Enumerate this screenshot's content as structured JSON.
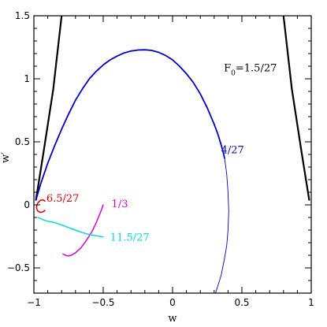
{
  "chart_data": {
    "type": "line",
    "title": "",
    "xlabel": "w",
    "ylabel": "w′",
    "xlim": [
      -1,
      1
    ],
    "ylim": [
      -0.7,
      1.5
    ],
    "grid": false,
    "x_ticks": [
      -1,
      -0.5,
      0,
      0.5,
      1
    ],
    "x_tick_labels": [
      "−1",
      "−0.5",
      "0",
      "0.5",
      "1"
    ],
    "y_ticks": [
      -0.5,
      0,
      0.5,
      1,
      1.5
    ],
    "y_tick_labels": [
      "−0.5",
      "0",
      "0.5",
      "1",
      "1.5"
    ],
    "annotations": [
      {
        "text": "F",
        "sub": "0",
        "rest": "=1.5/27",
        "x": 0.37,
        "y": 1.06,
        "color": "#000000"
      },
      {
        "text": "4/27",
        "x": 0.35,
        "y": 0.41,
        "color": "#0000cc"
      },
      {
        "text": "6.5/27",
        "x": -0.91,
        "y": 0.025,
        "color": "#dd0000"
      },
      {
        "text": "1/3",
        "x": -0.44,
        "y": -0.02,
        "color": "#dd00dd"
      },
      {
        "text": "11.5/27",
        "x": -0.45,
        "y": -0.285,
        "color": "#00dddd"
      }
    ],
    "series": [
      {
        "color": "#000000",
        "width": 2.2,
        "points": [
          [
            -0.985,
            0.04
          ],
          [
            -0.93,
            0.42
          ],
          [
            -0.86,
            0.92
          ],
          [
            -0.8,
            1.5
          ]
        ]
      },
      {
        "color": "#000000",
        "width": 2.2,
        "points": [
          [
            0.8,
            1.5
          ],
          [
            0.86,
            0.92
          ],
          [
            0.93,
            0.42
          ],
          [
            0.985,
            0.04
          ]
        ]
      },
      {
        "color": "#0000cc",
        "width": 1.8,
        "points": [
          [
            -0.985,
            0.04
          ],
          [
            -0.95,
            0.17
          ],
          [
            -0.9,
            0.33
          ],
          [
            -0.85,
            0.47
          ],
          [
            -0.8,
            0.6
          ],
          [
            -0.75,
            0.72
          ],
          [
            -0.7,
            0.83
          ],
          [
            -0.65,
            0.92
          ],
          [
            -0.6,
            1.0
          ],
          [
            -0.55,
            1.06
          ],
          [
            -0.5,
            1.11
          ],
          [
            -0.45,
            1.15
          ],
          [
            -0.4,
            1.18
          ],
          [
            -0.35,
            1.205
          ],
          [
            -0.3,
            1.22
          ],
          [
            -0.25,
            1.228
          ],
          [
            -0.2,
            1.23
          ],
          [
            -0.15,
            1.225
          ],
          [
            -0.1,
            1.21
          ],
          [
            -0.05,
            1.185
          ],
          [
            0.0,
            1.15
          ],
          [
            0.05,
            1.1
          ],
          [
            0.1,
            1.04
          ],
          [
            0.15,
            0.97
          ],
          [
            0.2,
            0.88
          ],
          [
            0.25,
            0.77
          ],
          [
            0.3,
            0.64
          ],
          [
            0.33,
            0.55
          ],
          [
            0.36,
            0.44
          ],
          [
            0.375,
            0.37
          ]
        ]
      },
      {
        "color": "#0000cc",
        "width": 0.9,
        "points": [
          [
            0.375,
            0.37
          ],
          [
            0.39,
            0.25
          ],
          [
            0.4,
            0.1
          ],
          [
            0.405,
            -0.05
          ],
          [
            0.4,
            -0.2
          ],
          [
            0.39,
            -0.33
          ],
          [
            0.37,
            -0.45
          ],
          [
            0.35,
            -0.56
          ],
          [
            0.33,
            -0.63
          ],
          [
            0.31,
            -0.7
          ]
        ]
      },
      {
        "color": "#dd0000",
        "width": 1.5,
        "points": [
          [
            -0.92,
            0.03
          ],
          [
            -0.935,
            0.04
          ],
          [
            -0.955,
            0.035
          ],
          [
            -0.975,
            0.01
          ],
          [
            -0.982,
            -0.02
          ],
          [
            -0.975,
            -0.045
          ],
          [
            -0.955,
            -0.06
          ],
          [
            -0.935,
            -0.055
          ],
          [
            -0.92,
            -0.045
          ]
        ]
      },
      {
        "color": "#dd00dd",
        "width": 1.5,
        "points": [
          [
            -0.5,
            0.0
          ],
          [
            -0.52,
            -0.06
          ],
          [
            -0.55,
            -0.14
          ],
          [
            -0.58,
            -0.21
          ],
          [
            -0.62,
            -0.28
          ],
          [
            -0.66,
            -0.34
          ],
          [
            -0.7,
            -0.38
          ],
          [
            -0.73,
            -0.4
          ],
          [
            -0.76,
            -0.405
          ],
          [
            -0.79,
            -0.39
          ]
        ]
      },
      {
        "color": "#00dddd",
        "width": 1.5,
        "points": [
          [
            -0.97,
            -0.1
          ],
          [
            -0.95,
            -0.11
          ],
          [
            -0.93,
            -0.12
          ],
          [
            -0.9,
            -0.13
          ],
          [
            -0.85,
            -0.14
          ],
          [
            -0.8,
            -0.16
          ],
          [
            -0.75,
            -0.18
          ],
          [
            -0.7,
            -0.2
          ],
          [
            -0.65,
            -0.22
          ],
          [
            -0.6,
            -0.235
          ],
          [
            -0.55,
            -0.245
          ],
          [
            -0.5,
            -0.255
          ]
        ]
      }
    ]
  }
}
